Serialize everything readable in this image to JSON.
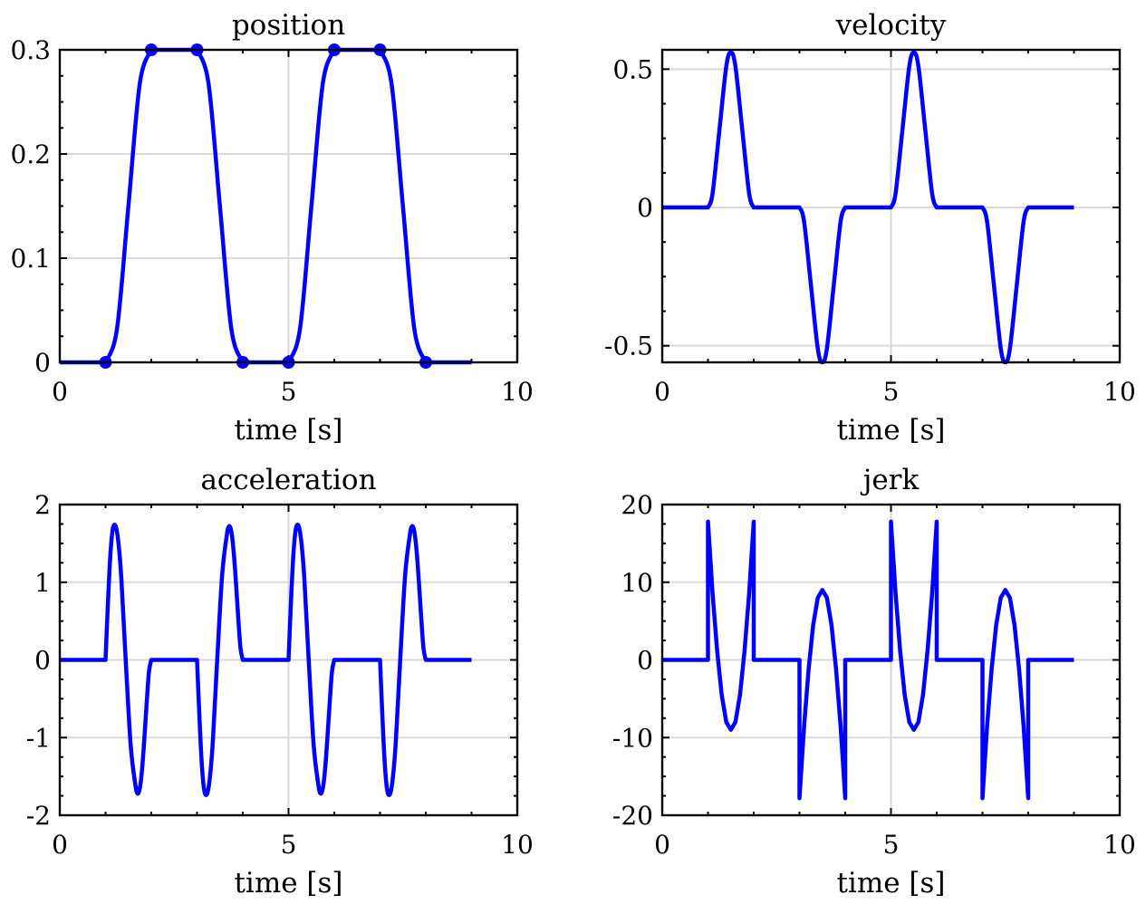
{
  "colors": {
    "series": "#0000ff",
    "grid": "#d9d9d9",
    "frame": "#000000"
  },
  "chart_data": [
    {
      "type": "line",
      "title": "position",
      "xlabel": "time [s]",
      "ylabel": "",
      "xlim": [
        0,
        10
      ],
      "ylim": [
        0,
        0.3
      ],
      "xticks": [
        0,
        5,
        10
      ],
      "xtick_labels": [
        "0",
        "5",
        "10"
      ],
      "yticks": [
        0,
        0.1,
        0.2,
        0.3
      ],
      "ytick_labels": [
        "0",
        "0.1",
        "0.2",
        "0.3"
      ],
      "grid": true,
      "series": [
        {
          "x": [
            0,
            1,
            1.25,
            1.5,
            1.75,
            2,
            3,
            3.25,
            3.5,
            3.75,
            4,
            5,
            5.25,
            5.5,
            5.75,
            6,
            7,
            7.25,
            7.5,
            7.75,
            8,
            9
          ],
          "y": [
            0,
            0,
            0.032,
            0.15,
            0.268,
            0.3,
            0.3,
            0.268,
            0.15,
            0.032,
            0,
            0,
            0.032,
            0.15,
            0.268,
            0.3,
            0.3,
            0.268,
            0.15,
            0.032,
            0,
            0
          ],
          "markers": {
            "x": [
              1,
              2,
              3,
              4,
              5,
              6,
              7,
              8
            ],
            "y": [
              0,
              0.3,
              0.3,
              0,
              0,
              0.3,
              0.3,
              0
            ]
          }
        }
      ]
    },
    {
      "type": "line",
      "title": "velocity",
      "xlabel": "time [s]",
      "ylabel": "",
      "xlim": [
        0,
        10
      ],
      "ylim": [
        -0.56,
        0.57
      ],
      "xticks": [
        0,
        5,
        10
      ],
      "xtick_labels": [
        "0",
        "5",
        "10"
      ],
      "yticks": [
        -0.5,
        0,
        0.5
      ],
      "ytick_labels": [
        "-0.5",
        "0",
        "0.5"
      ],
      "grid": true,
      "series": [
        {
          "x": [
            0,
            1,
            1.1,
            1.25,
            1.4,
            1.5,
            1.6,
            1.75,
            1.9,
            2,
            3,
            3.1,
            3.25,
            3.4,
            3.5,
            3.6,
            3.75,
            3.9,
            4,
            5,
            5.1,
            5.25,
            5.4,
            5.5,
            5.6,
            5.75,
            5.9,
            6,
            7,
            7.1,
            7.25,
            7.4,
            7.5,
            7.6,
            7.75,
            7.9,
            8,
            9
          ],
          "y": [
            0,
            0,
            0.05,
            0.28,
            0.51,
            0.56,
            0.51,
            0.28,
            0.05,
            0,
            0,
            -0.05,
            -0.28,
            -0.51,
            -0.56,
            -0.51,
            -0.28,
            -0.05,
            0,
            0,
            0.05,
            0.28,
            0.51,
            0.56,
            0.51,
            0.28,
            0.05,
            0,
            0,
            -0.05,
            -0.28,
            -0.51,
            -0.56,
            -0.51,
            -0.28,
            -0.05,
            0,
            0
          ]
        }
      ]
    },
    {
      "type": "line",
      "title": "acceleration",
      "xlabel": "time [s]",
      "ylabel": "",
      "xlim": [
        0,
        10
      ],
      "ylim": [
        -2,
        2
      ],
      "xticks": [
        0,
        5,
        10
      ],
      "xtick_labels": [
        "0",
        "5",
        "10"
      ],
      "yticks": [
        -2,
        -1,
        0,
        1,
        2
      ],
      "ytick_labels": [
        "-2",
        "-1",
        "0",
        "1",
        "2"
      ],
      "grid": true,
      "series": [
        {
          "x": [
            0,
            1,
            1.05,
            1.1,
            1.15,
            1.2,
            1.25,
            1.3,
            1.35,
            1.45,
            1.55,
            1.65,
            1.7,
            1.75,
            1.8,
            1.85,
            1.9,
            1.95,
            2,
            3,
            3.05,
            3.1,
            3.15,
            3.2,
            3.25,
            3.3,
            3.35,
            3.45,
            3.55,
            3.65,
            3.7,
            3.75,
            3.8,
            3.85,
            3.9,
            3.95,
            4,
            5,
            5.05,
            5.1,
            5.15,
            5.2,
            5.25,
            5.3,
            5.35,
            5.45,
            5.55,
            5.65,
            5.7,
            5.75,
            5.8,
            5.85,
            5.9,
            5.95,
            6,
            7,
            7.05,
            7.1,
            7.15,
            7.2,
            7.25,
            7.3,
            7.35,
            7.45,
            7.55,
            7.65,
            7.7,
            7.75,
            7.8,
            7.85,
            7.9,
            7.95,
            8,
            9
          ],
          "y": [
            0,
            0,
            0.7,
            1.3,
            1.65,
            1.74,
            1.65,
            1.4,
            1.0,
            -0.1,
            -1.1,
            -1.6,
            -1.72,
            -1.65,
            -1.4,
            -1.0,
            -0.55,
            -0.15,
            0,
            0,
            -0.7,
            -1.3,
            -1.65,
            -1.74,
            -1.65,
            -1.4,
            -1.0,
            0.1,
            1.1,
            1.6,
            1.72,
            1.65,
            1.4,
            1.0,
            0.55,
            0.15,
            0,
            0,
            0.7,
            1.3,
            1.65,
            1.74,
            1.65,
            1.4,
            1.0,
            -0.1,
            -1.1,
            -1.6,
            -1.72,
            -1.65,
            -1.4,
            -1.0,
            -0.55,
            -0.15,
            0,
            0,
            -0.7,
            -1.3,
            -1.65,
            -1.74,
            -1.65,
            -1.4,
            -1.0,
            0.1,
            1.1,
            1.6,
            1.72,
            1.65,
            1.4,
            1.0,
            0.55,
            0.15,
            0,
            0
          ]
        }
      ]
    },
    {
      "type": "line",
      "title": "jerk",
      "xlabel": "time [s]",
      "ylabel": "",
      "xlim": [
        0,
        10
      ],
      "ylim": [
        -20,
        20
      ],
      "xticks": [
        0,
        5,
        10
      ],
      "xtick_labels": [
        "0",
        "5",
        "10"
      ],
      "yticks": [
        -20,
        -10,
        0,
        10,
        20
      ],
      "ytick_labels": [
        "-20",
        "-10",
        "0",
        "10",
        "20"
      ],
      "grid": true,
      "series": [
        {
          "x": [
            0,
            1,
            1,
            1.1,
            1.2,
            1.3,
            1.4,
            1.5,
            1.6,
            1.7,
            1.8,
            1.9,
            2,
            2,
            3,
            3,
            3.1,
            3.2,
            3.3,
            3.4,
            3.5,
            3.6,
            3.7,
            3.8,
            3.9,
            4,
            4,
            5,
            5,
            5.1,
            5.2,
            5.3,
            5.4,
            5.5,
            5.6,
            5.7,
            5.8,
            5.9,
            6,
            6,
            7,
            7,
            7.1,
            7.2,
            7.3,
            7.4,
            7.5,
            7.6,
            7.7,
            7.8,
            7.9,
            8,
            8,
            9
          ],
          "y": [
            0,
            0,
            17.8,
            8.6,
            1.2,
            -4.5,
            -8.0,
            -9.0,
            -8.0,
            -4.5,
            1.2,
            8.6,
            17.8,
            0,
            0,
            -17.8,
            -8.6,
            -1.2,
            4.5,
            8.0,
            9.0,
            8.0,
            4.5,
            -1.2,
            -8.6,
            -17.8,
            0,
            0,
            17.8,
            8.6,
            1.2,
            -4.5,
            -8.0,
            -9.0,
            -8.0,
            -4.5,
            1.2,
            8.6,
            17.8,
            0,
            0,
            -17.8,
            -8.6,
            -1.2,
            4.5,
            8.0,
            9.0,
            8.0,
            4.5,
            -1.2,
            -8.6,
            -17.8,
            0,
            0
          ]
        }
      ]
    }
  ]
}
